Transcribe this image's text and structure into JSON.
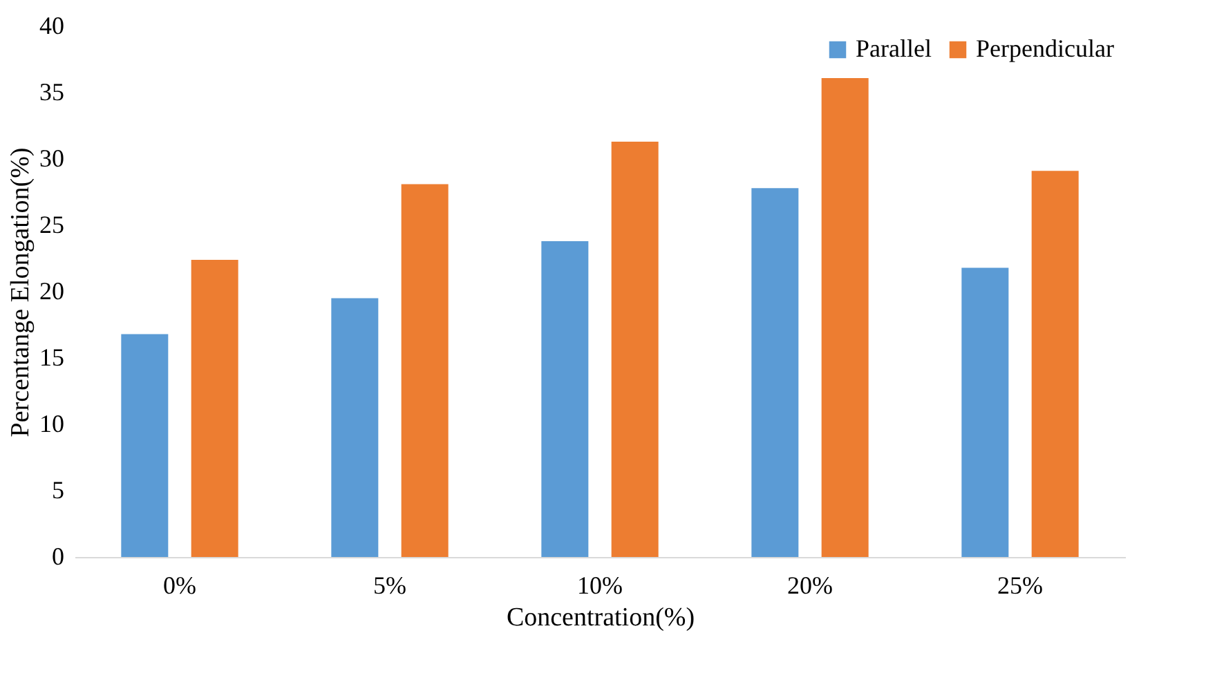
{
  "chart_data": {
    "type": "bar",
    "xlabel": "Concentration(%)",
    "ylabel": "Percentange Elongation(%)",
    "categories": [
      "0%",
      "5%",
      "10%",
      "20%",
      "25%"
    ],
    "series": [
      {
        "name": "Parallel",
        "color": "#5b9bd5",
        "values": [
          16.8,
          19.5,
          23.8,
          27.8,
          21.8
        ]
      },
      {
        "name": "Perpendicular",
        "color": "#ed7d31",
        "values": [
          22.4,
          28.1,
          31.3,
          36.1,
          29.1
        ]
      }
    ],
    "ylim": [
      0,
      40
    ],
    "yticks": [
      0,
      5,
      10,
      15,
      20,
      25,
      30,
      35,
      40
    ],
    "grid": false,
    "legend": "top right"
  }
}
